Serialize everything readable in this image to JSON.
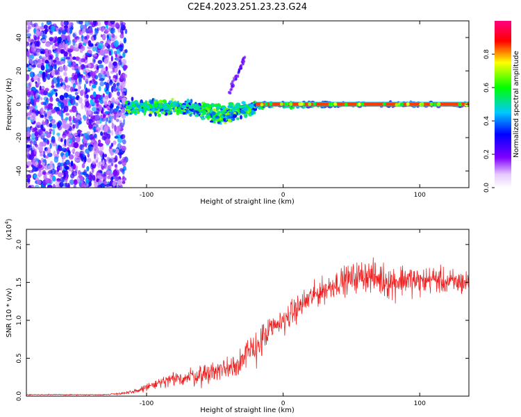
{
  "figure": {
    "title": "C2E4.2023.251.23.23.G24"
  },
  "chart_data": [
    {
      "type": "heatmap",
      "xlabel": "Height of straight line (km)",
      "ylabel": "Frequency (Hz)",
      "xlim": [
        -188,
        136
      ],
      "ylim": [
        -50,
        50
      ],
      "x_ticks": [
        -100,
        0,
        100
      ],
      "y_ticks": [
        -40,
        -20,
        0,
        20,
        40
      ],
      "grid": false,
      "colorbar": {
        "label": "Normalized spectral amplitude",
        "range": [
          0.0,
          1.0
        ],
        "ticks": [
          0.0,
          0.2,
          0.4,
          0.6,
          0.8
        ],
        "colormap": [
          "#ffffff",
          "#e6c8ff",
          "#8000ff",
          "#0000ff",
          "#00c8ff",
          "#00ff00",
          "#ffff00",
          "#ff0000",
          "#ff0080"
        ]
      },
      "features": [
        {
          "region": "noise",
          "x_range": [
            -188,
            -115
          ],
          "freq_range": [
            -50,
            50
          ],
          "amplitude": [
            0.1,
            0.45
          ]
        },
        {
          "region": "broad band",
          "x_range": [
            -115,
            -20
          ],
          "freq_range": [
            -12,
            5
          ],
          "amplitude": [
            0.3,
            0.7
          ]
        },
        {
          "region": "narrow line",
          "x_range": [
            -20,
            136
          ],
          "freq": 0,
          "amplitude": [
            0.7,
            1.0
          ]
        },
        {
          "region": "faint streak",
          "x_range": [
            -40,
            -28
          ],
          "freq_range": [
            6,
            28
          ],
          "amplitude": [
            0.15,
            0.3
          ]
        }
      ]
    },
    {
      "type": "line",
      "xlabel": "Height of straight line (km)",
      "ylabel": "SNR (10 * v/v)",
      "y_multiplier": "(x10",
      "y_multiplier_exp": "4",
      "xlim": [
        -188,
        136
      ],
      "ylim": [
        0,
        2.2
      ],
      "x_ticks": [
        -100,
        0,
        100
      ],
      "y_ticks": [
        0.0,
        0.5,
        1.0,
        1.5,
        2.0
      ],
      "grid": false,
      "series_color": "#ee2222",
      "envelope_x": [
        -188,
        -130,
        -110,
        -100,
        -80,
        -60,
        -40,
        -30,
        -20,
        -10,
        0,
        10,
        20,
        30,
        40,
        50,
        60,
        70,
        80,
        90,
        100,
        110,
        120,
        136
      ],
      "envelope_mean": [
        0.02,
        0.02,
        0.05,
        0.12,
        0.22,
        0.28,
        0.38,
        0.48,
        0.65,
        0.85,
        1.0,
        1.15,
        1.3,
        1.4,
        1.5,
        1.55,
        1.6,
        1.55,
        1.5,
        1.55,
        1.5,
        1.55,
        1.5,
        1.5
      ],
      "envelope_spread": [
        0.01,
        0.01,
        0.04,
        0.08,
        0.15,
        0.2,
        0.25,
        0.3,
        0.35,
        0.3,
        0.25,
        0.25,
        0.25,
        0.25,
        0.25,
        0.28,
        0.3,
        0.32,
        0.35,
        0.3,
        0.28,
        0.25,
        0.25,
        0.25
      ]
    }
  ]
}
